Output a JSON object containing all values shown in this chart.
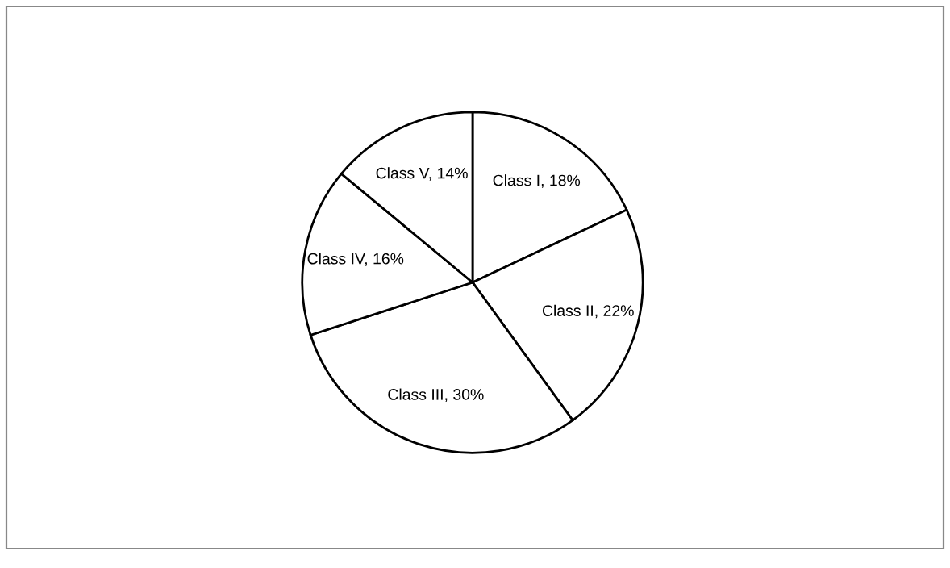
{
  "chart_data": {
    "type": "pie",
    "categories": [
      "Class I, 18%",
      "Class II, 22%",
      "Class III, 30%",
      "Class IV, 16%",
      "Class V, 14%"
    ],
    "values": [
      18,
      22,
      30,
      16,
      14
    ],
    "colors": [
      "#ffffff",
      "#ffffff",
      "#ffffff",
      "#ffffff",
      "#ffffff"
    ],
    "legend": false
  }
}
